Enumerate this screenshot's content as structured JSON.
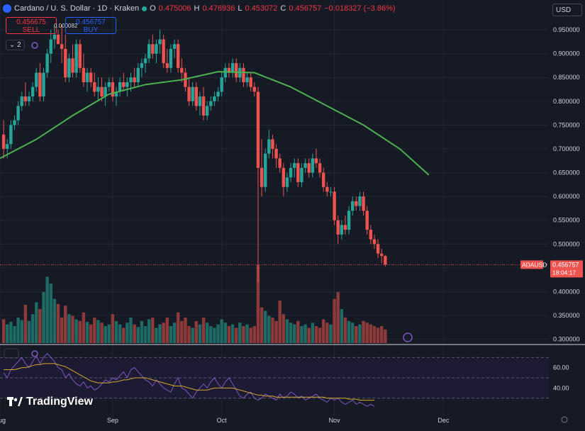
{
  "header": {
    "symbol": "Cardano / U. S. Dollar · 1D · Kraken",
    "open_label": "O",
    "open": "0.475006",
    "high_label": "H",
    "high": "0.476936",
    "low_label": "L",
    "low": "0.453072",
    "close_label": "C",
    "close": "0.456757",
    "change": "−0.018327 (−3.86%)"
  },
  "trade": {
    "sell_price": "0.456675",
    "sell_label": "SELL",
    "buy_price": "0.456757",
    "buy_label": "BUY",
    "spread": "0.000082"
  },
  "indicators_collapsed": "2",
  "currency": "USD",
  "brand": "TradingView",
  "colors": {
    "up": "#26a69a",
    "down": "#ef5350",
    "ma": "#4caf50",
    "rsi": "#7e57c2",
    "rsi_ma": "#d4a72c"
  },
  "chart_data": [
    {
      "type": "candlestick",
      "symbol_tag": "ADAUSD",
      "last_price": "0.456757",
      "countdown": "18:04:17",
      "y_ticks": [
        "0.950000",
        "0.900000",
        "0.850000",
        "0.800000",
        "0.750000",
        "0.700000",
        "0.650000",
        "0.600000",
        "0.550000",
        "0.500000",
        "0.450000",
        "0.400000",
        "0.350000",
        "0.300000"
      ],
      "ylim": [
        0.292,
        0.968
      ],
      "x_ticks": [
        "Aug",
        "Sep",
        "Oct",
        "Nov",
        "Dec"
      ],
      "x_tick_days": [
        0,
        31,
        61,
        92,
        122
      ],
      "day_range": [
        0,
        151
      ],
      "ohlc": [
        [
          0.73,
          0.76,
          0.68,
          0.7
        ],
        [
          0.7,
          0.72,
          0.68,
          0.71
        ],
        [
          0.71,
          0.76,
          0.7,
          0.75
        ],
        [
          0.75,
          0.77,
          0.74,
          0.76
        ],
        [
          0.76,
          0.8,
          0.75,
          0.79
        ],
        [
          0.79,
          0.82,
          0.78,
          0.81
        ],
        [
          0.81,
          0.84,
          0.79,
          0.8
        ],
        [
          0.8,
          0.82,
          0.79,
          0.81
        ],
        [
          0.81,
          0.84,
          0.8,
          0.83
        ],
        [
          0.83,
          0.87,
          0.82,
          0.86
        ],
        [
          0.86,
          0.88,
          0.8,
          0.81
        ],
        [
          0.81,
          0.87,
          0.8,
          0.86
        ],
        [
          0.86,
          0.91,
          0.85,
          0.9
        ],
        [
          0.9,
          0.95,
          0.88,
          0.93
        ],
        [
          0.93,
          0.96,
          0.91,
          0.94
        ],
        [
          0.94,
          0.95,
          0.92,
          0.92
        ],
        [
          0.92,
          0.96,
          0.88,
          0.91
        ],
        [
          0.91,
          0.94,
          0.84,
          0.85
        ],
        [
          0.85,
          0.9,
          0.84,
          0.89
        ],
        [
          0.89,
          0.92,
          0.85,
          0.86
        ],
        [
          0.86,
          0.93,
          0.85,
          0.92
        ],
        [
          0.92,
          0.93,
          0.86,
          0.87
        ],
        [
          0.87,
          0.9,
          0.83,
          0.84
        ],
        [
          0.84,
          0.87,
          0.82,
          0.86
        ],
        [
          0.86,
          0.87,
          0.83,
          0.84
        ],
        [
          0.84,
          0.86,
          0.81,
          0.82
        ],
        [
          0.82,
          0.85,
          0.8,
          0.83
        ],
        [
          0.83,
          0.85,
          0.8,
          0.81
        ],
        [
          0.81,
          0.84,
          0.79,
          0.83
        ],
        [
          0.83,
          0.85,
          0.82,
          0.84
        ],
        [
          0.84,
          0.85,
          0.8,
          0.81
        ],
        [
          0.81,
          0.83,
          0.79,
          0.82
        ],
        [
          0.82,
          0.85,
          0.81,
          0.84
        ],
        [
          0.84,
          0.86,
          0.82,
          0.83
        ],
        [
          0.83,
          0.85,
          0.81,
          0.84
        ],
        [
          0.84,
          0.86,
          0.82,
          0.85
        ],
        [
          0.85,
          0.87,
          0.83,
          0.84
        ],
        [
          0.84,
          0.88,
          0.83,
          0.87
        ],
        [
          0.87,
          0.89,
          0.85,
          0.88
        ],
        [
          0.88,
          0.9,
          0.86,
          0.89
        ],
        [
          0.89,
          0.93,
          0.88,
          0.92
        ],
        [
          0.92,
          0.94,
          0.89,
          0.9
        ],
        [
          0.9,
          0.93,
          0.88,
          0.92
        ],
        [
          0.92,
          0.95,
          0.9,
          0.93
        ],
        [
          0.93,
          0.94,
          0.87,
          0.88
        ],
        [
          0.88,
          0.91,
          0.86,
          0.87
        ],
        [
          0.87,
          0.92,
          0.86,
          0.91
        ],
        [
          0.91,
          0.93,
          0.89,
          0.92
        ],
        [
          0.92,
          0.93,
          0.86,
          0.87
        ],
        [
          0.87,
          0.89,
          0.84,
          0.86
        ],
        [
          0.86,
          0.87,
          0.82,
          0.83
        ],
        [
          0.83,
          0.85,
          0.79,
          0.8
        ],
        [
          0.8,
          0.84,
          0.79,
          0.83
        ],
        [
          0.83,
          0.84,
          0.78,
          0.79
        ],
        [
          0.79,
          0.82,
          0.77,
          0.81
        ],
        [
          0.81,
          0.83,
          0.76,
          0.77
        ],
        [
          0.77,
          0.8,
          0.76,
          0.79
        ],
        [
          0.79,
          0.81,
          0.78,
          0.8
        ],
        [
          0.8,
          0.82,
          0.79,
          0.81
        ],
        [
          0.81,
          0.83,
          0.8,
          0.82
        ],
        [
          0.82,
          0.86,
          0.81,
          0.85
        ],
        [
          0.85,
          0.88,
          0.84,
          0.87
        ],
        [
          0.87,
          0.88,
          0.85,
          0.86
        ],
        [
          0.86,
          0.89,
          0.85,
          0.88
        ],
        [
          0.88,
          0.89,
          0.84,
          0.85
        ],
        [
          0.85,
          0.88,
          0.84,
          0.87
        ],
        [
          0.87,
          0.88,
          0.83,
          0.84
        ],
        [
          0.84,
          0.86,
          0.83,
          0.85
        ],
        [
          0.85,
          0.86,
          0.82,
          0.83
        ],
        [
          0.83,
          0.84,
          0.81,
          0.82
        ],
        [
          0.82,
          0.83,
          0.42,
          0.66
        ],
        [
          0.66,
          0.72,
          0.6,
          0.62
        ],
        [
          0.62,
          0.7,
          0.61,
          0.69
        ],
        [
          0.69,
          0.74,
          0.68,
          0.72
        ],
        [
          0.72,
          0.73,
          0.68,
          0.7
        ],
        [
          0.7,
          0.71,
          0.66,
          0.68
        ],
        [
          0.68,
          0.69,
          0.65,
          0.66
        ],
        [
          0.66,
          0.67,
          0.6,
          0.62
        ],
        [
          0.62,
          0.65,
          0.61,
          0.64
        ],
        [
          0.64,
          0.67,
          0.63,
          0.66
        ],
        [
          0.66,
          0.68,
          0.64,
          0.67
        ],
        [
          0.67,
          0.68,
          0.62,
          0.63
        ],
        [
          0.63,
          0.67,
          0.62,
          0.66
        ],
        [
          0.66,
          0.68,
          0.65,
          0.67
        ],
        [
          0.67,
          0.68,
          0.64,
          0.65
        ],
        [
          0.65,
          0.69,
          0.64,
          0.68
        ],
        [
          0.68,
          0.7,
          0.66,
          0.67
        ],
        [
          0.67,
          0.68,
          0.64,
          0.65
        ],
        [
          0.65,
          0.66,
          0.61,
          0.62
        ],
        [
          0.62,
          0.63,
          0.6,
          0.61
        ],
        [
          0.61,
          0.62,
          0.6,
          0.61
        ],
        [
          0.61,
          0.62,
          0.54,
          0.55
        ],
        [
          0.55,
          0.56,
          0.5,
          0.52
        ],
        [
          0.52,
          0.55,
          0.51,
          0.54
        ],
        [
          0.54,
          0.56,
          0.52,
          0.53
        ],
        [
          0.53,
          0.58,
          0.52,
          0.57
        ],
        [
          0.57,
          0.6,
          0.56,
          0.59
        ],
        [
          0.59,
          0.6,
          0.57,
          0.58
        ],
        [
          0.58,
          0.61,
          0.57,
          0.6
        ],
        [
          0.6,
          0.61,
          0.56,
          0.57
        ],
        [
          0.57,
          0.58,
          0.52,
          0.53
        ],
        [
          0.53,
          0.54,
          0.5,
          0.51
        ],
        [
          0.51,
          0.52,
          0.49,
          0.5
        ],
        [
          0.5,
          0.51,
          0.47,
          0.48
        ],
        [
          0.48,
          0.49,
          0.46,
          0.475
        ],
        [
          0.475006,
          0.476936,
          0.453072,
          0.456757
        ]
      ],
      "volume_scale_max": 1.0,
      "volume": [
        0.28,
        0.22,
        0.25,
        0.2,
        0.3,
        0.27,
        0.45,
        0.26,
        0.34,
        0.48,
        0.4,
        0.6,
        0.78,
        0.7,
        0.52,
        0.46,
        0.3,
        0.44,
        0.34,
        0.32,
        0.28,
        0.26,
        0.36,
        0.25,
        0.22,
        0.3,
        0.27,
        0.24,
        0.2,
        0.22,
        0.34,
        0.26,
        0.22,
        0.18,
        0.24,
        0.3,
        0.22,
        0.19,
        0.26,
        0.2,
        0.28,
        0.3,
        0.18,
        0.22,
        0.24,
        0.3,
        0.2,
        0.24,
        0.36,
        0.26,
        0.3,
        0.2,
        0.18,
        0.26,
        0.22,
        0.3,
        0.24,
        0.2,
        0.18,
        0.22,
        0.28,
        0.24,
        0.2,
        0.22,
        0.18,
        0.24,
        0.2,
        0.22,
        0.18,
        0.2,
        0.92,
        0.42,
        0.38,
        0.32,
        0.3,
        0.26,
        0.5,
        0.34,
        0.28,
        0.24,
        0.22,
        0.26,
        0.2,
        0.22,
        0.18,
        0.24,
        0.2,
        0.18,
        0.28,
        0.24,
        0.22,
        0.52,
        0.6,
        0.4,
        0.3,
        0.26,
        0.24,
        0.2,
        0.22,
        0.26,
        0.24,
        0.22,
        0.2,
        0.18,
        0.2,
        0.16
      ],
      "ma_line": [
        [
          0,
          0.68
        ],
        [
          10,
          0.72
        ],
        [
          20,
          0.77
        ],
        [
          30,
          0.815
        ],
        [
          40,
          0.835
        ],
        [
          50,
          0.845
        ],
        [
          60,
          0.862
        ],
        [
          70,
          0.86
        ],
        [
          80,
          0.83
        ],
        [
          90,
          0.79
        ],
        [
          100,
          0.75
        ],
        [
          110,
          0.7
        ],
        [
          118,
          0.645
        ]
      ],
      "rsi": {
        "ticks": [
          "60.00",
          "40.00"
        ],
        "ylim": [
          20,
          80
        ],
        "bands": [
          30,
          50,
          70
        ],
        "values": [
          55,
          50,
          58,
          62,
          66,
          70,
          64,
          60,
          66,
          72,
          64,
          70,
          74,
          70,
          66,
          60,
          58,
          50,
          54,
          48,
          44,
          42,
          46,
          40,
          42,
          38,
          40,
          44,
          48,
          46,
          50,
          48,
          52,
          56,
          50,
          58,
          60,
          56,
          52,
          48,
          46,
          42,
          48,
          44,
          40,
          38,
          36,
          44,
          50,
          40,
          38,
          34,
          30,
          36,
          40,
          44,
          40,
          46,
          50,
          44,
          40,
          46,
          50,
          44,
          38,
          32,
          30,
          34,
          36,
          30,
          28,
          30,
          34,
          32,
          30,
          28,
          34,
          30,
          32,
          36,
          34,
          30,
          32,
          28,
          30,
          32,
          34,
          30,
          28,
          26,
          30,
          28,
          30,
          26,
          24,
          26,
          28,
          24,
          26,
          24,
          22,
          24,
          22
        ],
        "ma": [
          58,
          58,
          58,
          58,
          59,
          60,
          60,
          61,
          62,
          63,
          63,
          64,
          64,
          64,
          64,
          63,
          62,
          61,
          59,
          57,
          55,
          53,
          51,
          49,
          47,
          46,
          45,
          45,
          45,
          45,
          46,
          46,
          47,
          48,
          48,
          49,
          50,
          50,
          50,
          50,
          49,
          48,
          47,
          46,
          45,
          44,
          43,
          42,
          42,
          42,
          41,
          40,
          39,
          38,
          38,
          38,
          38,
          39,
          40,
          40,
          40,
          40,
          40,
          40,
          39,
          38,
          37,
          36,
          35,
          34,
          33,
          33,
          32,
          32,
          32,
          31,
          31,
          31,
          31,
          31,
          31,
          31,
          31,
          31,
          31,
          31,
          31,
          31,
          31,
          30,
          30,
          30,
          30,
          30,
          30,
          29,
          29,
          29,
          28,
          28,
          28,
          28,
          28
        ]
      }
    }
  ]
}
